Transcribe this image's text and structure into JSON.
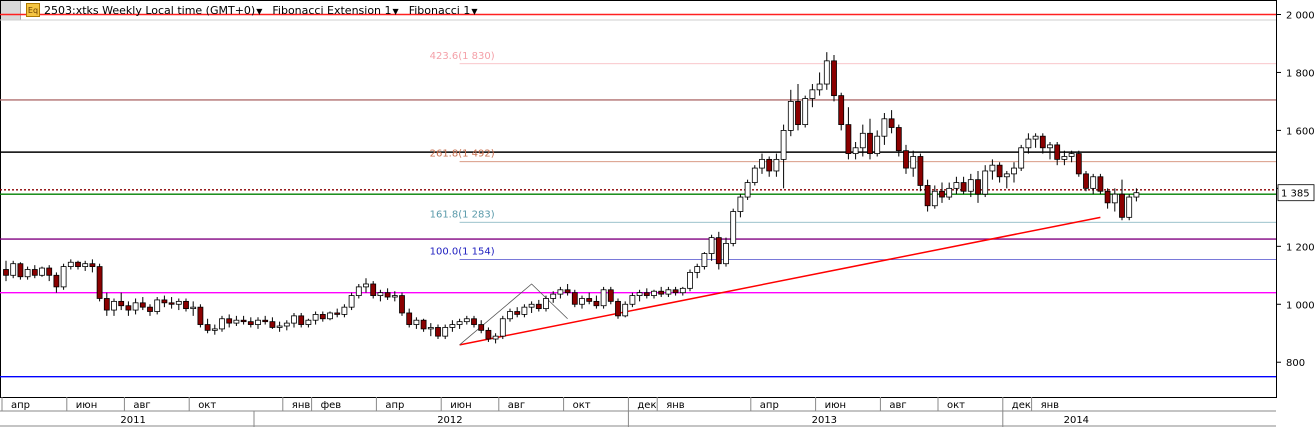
{
  "toolbar": {
    "icon_label": "Eq",
    "symbol": "2503:xtks Weekly Local time (GMT+0)",
    "tool1": "Fibonacci Extension 1",
    "tool2": "Fibonacci 1"
  },
  "chart_data": {
    "type": "candlestick",
    "ylim": [
      680,
      2050
    ],
    "yticks": [
      800,
      1000,
      1200,
      1400,
      1600,
      1800,
      2000
    ],
    "ytick_labels": [
      "800",
      "1 000",
      "1 200",
      "1 400",
      "1 600",
      "1 800",
      "2 000"
    ],
    "last_price": 1385,
    "last_price_label": "1 385",
    "months": [
      {
        "label": "апр",
        "w": 0
      },
      {
        "label": "июн",
        "w": 9
      },
      {
        "label": "авг",
        "w": 17
      },
      {
        "label": "окт",
        "w": 26
      },
      {
        "label": "янв",
        "w": 39
      },
      {
        "label": "фев",
        "w": 43
      },
      {
        "label": "апр",
        "w": 52
      },
      {
        "label": "июн",
        "w": 61
      },
      {
        "label": "авг",
        "w": 69
      },
      {
        "label": "окт",
        "w": 78
      },
      {
        "label": "дек",
        "w": 87
      },
      {
        "label": "янв",
        "w": 91
      },
      {
        "label": "апр",
        "w": 104
      },
      {
        "label": "июн",
        "w": 113
      },
      {
        "label": "авг",
        "w": 122
      },
      {
        "label": "окт",
        "w": 130
      },
      {
        "label": "дек",
        "w": 139
      },
      {
        "label": "янв",
        "w": 143
      }
    ],
    "years": [
      {
        "label": "2011",
        "w": 17
      },
      {
        "label": "2012",
        "w": 61
      },
      {
        "label": "2013",
        "w": 113
      },
      {
        "label": "2014",
        "w": 148
      }
    ],
    "year_separators": [
      35,
      87,
      139
    ],
    "hlines": [
      {
        "price": 2000,
        "color": "#ff2020",
        "style": "solid"
      },
      {
        "price": 1705,
        "color": "#b07070",
        "style": "solid"
      },
      {
        "price": 1525,
        "color": "#000000",
        "style": "solid"
      },
      {
        "price": 1395,
        "color": "#8b0000",
        "style": "dotted"
      },
      {
        "price": 1380,
        "color": "#008000",
        "style": "solid"
      },
      {
        "price": 1225,
        "color": "#800080",
        "style": "solid"
      },
      {
        "price": 1040,
        "color": "#ff00ff",
        "style": "solid"
      },
      {
        "price": 750,
        "color": "#0000ff",
        "style": "solid"
      }
    ],
    "fib_levels": [
      {
        "label": "423.6(1 830)",
        "price": 1830,
        "color": "#f4a0a8"
      },
      {
        "label": "261.8(1 492)",
        "price": 1492,
        "color": "#c87050"
      },
      {
        "label": "161.8(1 283)",
        "price": 1283,
        "color": "#5a9aaa"
      },
      {
        "label": "100.0(1 154)",
        "price": 1154,
        "color": "#2020c0"
      }
    ],
    "fib_start_w": 63,
    "trendline": {
      "w1": 63,
      "p1": 860,
      "w2": 152,
      "p2": 1300,
      "color": "#ff0000"
    },
    "zigzag": [
      {
        "w": 63,
        "p": 860
      },
      {
        "w": 73,
        "p": 1070
      },
      {
        "w": 78,
        "p": 950
      }
    ],
    "candles": [
      [
        1120,
        1150,
        1080,
        1100
      ],
      [
        1100,
        1150,
        1090,
        1140
      ],
      [
        1140,
        1145,
        1085,
        1095
      ],
      [
        1095,
        1130,
        1085,
        1120
      ],
      [
        1120,
        1135,
        1090,
        1100
      ],
      [
        1100,
        1130,
        1095,
        1125
      ],
      [
        1125,
        1135,
        1080,
        1100
      ],
      [
        1100,
        1110,
        1040,
        1060
      ],
      [
        1060,
        1140,
        1050,
        1130
      ],
      [
        1130,
        1155,
        1120,
        1145
      ],
      [
        1145,
        1150,
        1120,
        1130
      ],
      [
        1130,
        1150,
        1115,
        1140
      ],
      [
        1140,
        1155,
        1110,
        1130
      ],
      [
        1130,
        1140,
        1010,
        1020
      ],
      [
        1020,
        1040,
        960,
        980
      ],
      [
        980,
        1020,
        960,
        1010
      ],
      [
        1010,
        1040,
        980,
        995
      ],
      [
        995,
        1010,
        960,
        980
      ],
      [
        980,
        1020,
        965,
        1005
      ],
      [
        1005,
        1025,
        980,
        990
      ],
      [
        990,
        1000,
        960,
        975
      ],
      [
        975,
        1025,
        965,
        1015
      ],
      [
        1015,
        1030,
        990,
        1005
      ],
      [
        1005,
        1025,
        985,
        1000
      ],
      [
        1000,
        1020,
        980,
        1010
      ],
      [
        1010,
        1020,
        975,
        985
      ],
      [
        985,
        1010,
        960,
        990
      ],
      [
        990,
        1000,
        920,
        930
      ],
      [
        930,
        950,
        900,
        910
      ],
      [
        910,
        930,
        895,
        915
      ],
      [
        915,
        960,
        905,
        950
      ],
      [
        950,
        965,
        920,
        935
      ],
      [
        935,
        960,
        925,
        945
      ],
      [
        945,
        960,
        930,
        940
      ],
      [
        940,
        955,
        920,
        930
      ],
      [
        930,
        955,
        915,
        945
      ],
      [
        945,
        960,
        930,
        940
      ],
      [
        940,
        955,
        915,
        920
      ],
      [
        920,
        940,
        905,
        925
      ],
      [
        925,
        945,
        910,
        935
      ],
      [
        935,
        970,
        920,
        960
      ],
      [
        960,
        970,
        920,
        930
      ],
      [
        930,
        950,
        920,
        945
      ],
      [
        945,
        975,
        930,
        965
      ],
      [
        965,
        975,
        940,
        950
      ],
      [
        950,
        975,
        945,
        970
      ],
      [
        970,
        985,
        955,
        965
      ],
      [
        965,
        1000,
        955,
        990
      ],
      [
        990,
        1040,
        980,
        1030
      ],
      [
        1030,
        1070,
        1020,
        1060
      ],
      [
        1060,
        1090,
        1040,
        1070
      ],
      [
        1070,
        1080,
        1020,
        1030
      ],
      [
        1030,
        1050,
        1010,
        1040
      ],
      [
        1040,
        1055,
        1015,
        1025
      ],
      [
        1025,
        1045,
        1010,
        1030
      ],
      [
        1030,
        1040,
        960,
        970
      ],
      [
        970,
        985,
        920,
        930
      ],
      [
        930,
        955,
        915,
        945
      ],
      [
        945,
        950,
        905,
        915
      ],
      [
        915,
        935,
        890,
        920
      ],
      [
        920,
        930,
        880,
        890
      ],
      [
        890,
        930,
        880,
        920
      ],
      [
        920,
        945,
        905,
        930
      ],
      [
        930,
        950,
        915,
        940
      ],
      [
        940,
        960,
        930,
        950
      ],
      [
        950,
        960,
        920,
        930
      ],
      [
        930,
        945,
        900,
        910
      ],
      [
        910,
        920,
        870,
        880
      ],
      [
        880,
        900,
        865,
        890
      ],
      [
        890,
        960,
        880,
        950
      ],
      [
        950,
        985,
        940,
        975
      ],
      [
        975,
        990,
        955,
        965
      ],
      [
        965,
        1000,
        955,
        990
      ],
      [
        990,
        1010,
        970,
        1000
      ],
      [
        1000,
        1015,
        975,
        985
      ],
      [
        985,
        1030,
        975,
        1020
      ],
      [
        1020,
        1045,
        1005,
        1035
      ],
      [
        1035,
        1060,
        1020,
        1050
      ],
      [
        1050,
        1070,
        1030,
        1040
      ],
      [
        1040,
        1050,
        990,
        1000
      ],
      [
        1000,
        1030,
        985,
        1020
      ],
      [
        1020,
        1040,
        1000,
        1010
      ],
      [
        1010,
        1030,
        985,
        995
      ],
      [
        995,
        1060,
        985,
        1050
      ],
      [
        1050,
        1060,
        1000,
        1010
      ],
      [
        1010,
        1020,
        950,
        960
      ],
      [
        960,
        1010,
        955,
        1000
      ],
      [
        1000,
        1040,
        990,
        1030
      ],
      [
        1030,
        1050,
        1010,
        1040
      ],
      [
        1040,
        1055,
        1020,
        1030
      ],
      [
        1030,
        1050,
        1020,
        1045
      ],
      [
        1045,
        1060,
        1025,
        1035
      ],
      [
        1035,
        1060,
        1025,
        1050
      ],
      [
        1050,
        1060,
        1030,
        1040
      ],
      [
        1040,
        1060,
        1030,
        1055
      ],
      [
        1055,
        1120,
        1045,
        1110
      ],
      [
        1110,
        1140,
        1090,
        1130
      ],
      [
        1130,
        1180,
        1120,
        1175
      ],
      [
        1175,
        1240,
        1150,
        1230
      ],
      [
        1230,
        1250,
        1120,
        1140
      ],
      [
        1140,
        1230,
        1130,
        1210
      ],
      [
        1210,
        1330,
        1200,
        1320
      ],
      [
        1320,
        1380,
        1300,
        1370
      ],
      [
        1370,
        1430,
        1360,
        1420
      ],
      [
        1420,
        1480,
        1410,
        1470
      ],
      [
        1470,
        1520,
        1450,
        1500
      ],
      [
        1500,
        1510,
        1440,
        1460
      ],
      [
        1460,
        1520,
        1440,
        1500
      ],
      [
        1500,
        1620,
        1400,
        1600
      ],
      [
        1600,
        1740,
        1580,
        1700
      ],
      [
        1700,
        1760,
        1600,
        1620
      ],
      [
        1620,
        1720,
        1610,
        1710
      ],
      [
        1710,
        1760,
        1680,
        1740
      ],
      [
        1740,
        1800,
        1720,
        1760
      ],
      [
        1760,
        1870,
        1740,
        1840
      ],
      [
        1840,
        1860,
        1700,
        1720
      ],
      [
        1720,
        1730,
        1600,
        1620
      ],
      [
        1620,
        1680,
        1500,
        1520
      ],
      [
        1520,
        1560,
        1500,
        1540
      ],
      [
        1540,
        1620,
        1510,
        1590
      ],
      [
        1590,
        1640,
        1500,
        1520
      ],
      [
        1520,
        1600,
        1510,
        1580
      ],
      [
        1580,
        1660,
        1550,
        1640
      ],
      [
        1640,
        1670,
        1590,
        1610
      ],
      [
        1610,
        1620,
        1510,
        1530
      ],
      [
        1530,
        1550,
        1450,
        1470
      ],
      [
        1470,
        1530,
        1440,
        1510
      ],
      [
        1510,
        1520,
        1390,
        1410
      ],
      [
        1410,
        1430,
        1320,
        1340
      ],
      [
        1340,
        1410,
        1330,
        1390
      ],
      [
        1390,
        1420,
        1350,
        1370
      ],
      [
        1370,
        1420,
        1360,
        1400
      ],
      [
        1400,
        1440,
        1380,
        1420
      ],
      [
        1420,
        1440,
        1380,
        1390
      ],
      [
        1390,
        1450,
        1370,
        1430
      ],
      [
        1430,
        1460,
        1350,
        1380
      ],
      [
        1380,
        1480,
        1370,
        1460
      ],
      [
        1460,
        1500,
        1430,
        1480
      ],
      [
        1480,
        1490,
        1420,
        1440
      ],
      [
        1440,
        1460,
        1400,
        1450
      ],
      [
        1450,
        1490,
        1420,
        1470
      ],
      [
        1470,
        1550,
        1460,
        1540
      ],
      [
        1540,
        1590,
        1520,
        1570
      ],
      [
        1570,
        1590,
        1540,
        1580
      ],
      [
        1580,
        1590,
        1520,
        1540
      ],
      [
        1540,
        1560,
        1500,
        1550
      ],
      [
        1550,
        1560,
        1480,
        1500
      ],
      [
        1500,
        1530,
        1480,
        1510
      ],
      [
        1510,
        1530,
        1490,
        1520
      ],
      [
        1520,
        1530,
        1440,
        1450
      ],
      [
        1450,
        1460,
        1390,
        1400
      ],
      [
        1400,
        1450,
        1380,
        1440
      ],
      [
        1440,
        1450,
        1380,
        1390
      ],
      [
        1390,
        1400,
        1330,
        1350
      ],
      [
        1350,
        1400,
        1320,
        1380
      ],
      [
        1380,
        1430,
        1290,
        1300
      ],
      [
        1300,
        1380,
        1290,
        1370
      ],
      [
        1370,
        1400,
        1355,
        1385
      ]
    ]
  }
}
